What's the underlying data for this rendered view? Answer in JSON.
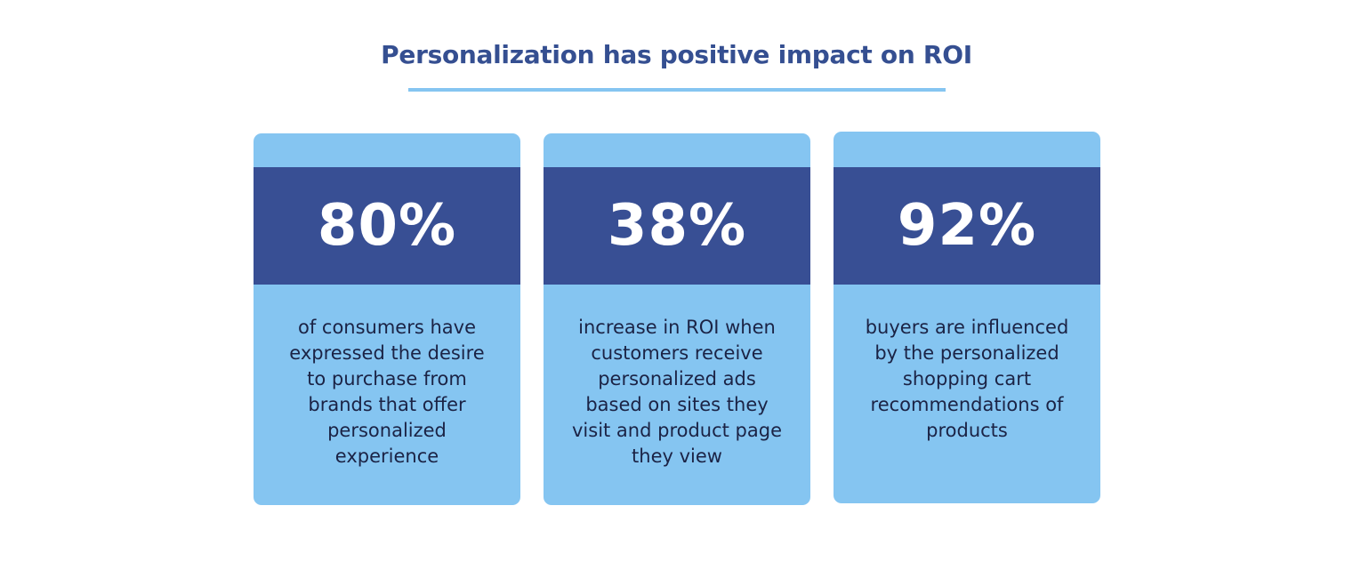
{
  "title": "Personalization has positive impact on ROI",
  "colors": {
    "title": "#354f91",
    "card_background": "#85c5f1",
    "stat_band": "#384f94",
    "stat_text": "#ffffff",
    "body_text": "#1b2345"
  },
  "cards": [
    {
      "stat": "80%",
      "description_lines": [
        "of consumers have",
        "expressed the desire",
        "to purchase from",
        "brands that offer",
        "personalized",
        "experience"
      ]
    },
    {
      "stat": "38%",
      "description_lines": [
        "increase in ROI when",
        "customers receive",
        "personalized ads",
        "based on sites they",
        "visit and product page",
        "they view"
      ]
    },
    {
      "stat": "92%",
      "description_lines": [
        "buyers are influenced",
        "by the personalized",
        "shopping cart",
        "recommendations of",
        "products"
      ]
    }
  ]
}
